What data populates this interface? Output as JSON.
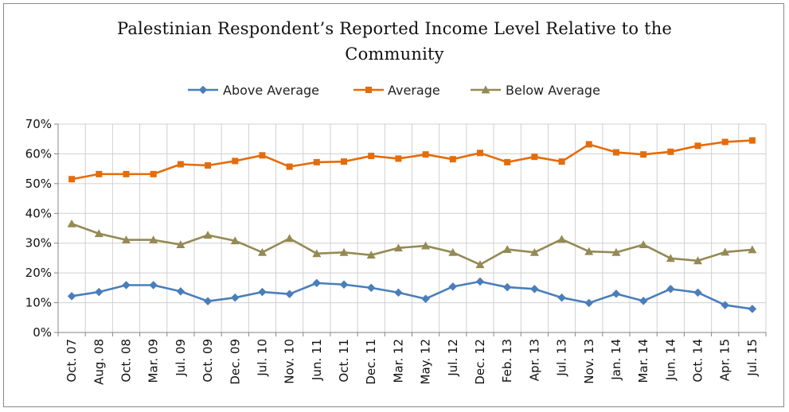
{
  "chart_data": {
    "type": "line",
    "title_lines": [
      "Palestinian Respondent’s Reported Income Level Relative to the",
      "Community"
    ],
    "categories": [
      "Oct. 07",
      "Aug. 08",
      "Oct. 08",
      "Mar. 09",
      "Jul. 09",
      "Oct. 09",
      "Dec. 09",
      "Jul. 10",
      "Nov. 10",
      "Jun. 11",
      "Oct. 11",
      "Dec. 11",
      "Mar. 12",
      "May. 12",
      "Jul. 12",
      "Dec. 12",
      "Feb. 13",
      "Apr. 13",
      "Jul. 13",
      "Nov. 13",
      "Jan. 14",
      "Mar. 14",
      "Jun. 14",
      "Oct. 14",
      "Apr. 15",
      "Jul. 15"
    ],
    "y_ticks": [
      "0%",
      "10%",
      "20%",
      "30%",
      "40%",
      "50%",
      "60%",
      "70%"
    ],
    "ylim": [
      0,
      70
    ],
    "grid": true,
    "legend_position": "top",
    "series": [
      {
        "name": "Above Average",
        "color": "#4a7ebb",
        "marker": "diamond",
        "values": [
          12.2,
          13.6,
          15.9,
          15.9,
          13.8,
          10.5,
          11.7,
          13.6,
          12.9,
          16.6,
          16.1,
          15.0,
          13.4,
          11.3,
          15.4,
          17.1,
          15.2,
          14.6,
          11.7,
          9.9,
          13.0,
          10.6,
          14.6,
          13.4,
          9.2,
          7.9
        ]
      },
      {
        "name": "Average",
        "color": "#e46c0a",
        "marker": "square",
        "values": [
          51.5,
          53.2,
          53.2,
          53.2,
          56.5,
          56.1,
          57.6,
          59.5,
          55.7,
          57.2,
          57.4,
          59.3,
          58.4,
          59.8,
          58.2,
          60.3,
          57.2,
          59.0,
          57.4,
          63.2,
          60.5,
          59.8,
          60.7,
          62.7,
          64.0,
          64.5
        ]
      },
      {
        "name": "Below Average",
        "color": "#948a54",
        "marker": "triangle",
        "values": [
          36.5,
          33.2,
          31.1,
          31.1,
          29.5,
          32.7,
          30.8,
          26.9,
          31.6,
          26.5,
          26.9,
          26.0,
          28.4,
          29.1,
          26.9,
          22.8,
          27.9,
          26.9,
          31.3,
          27.2,
          26.9,
          29.5,
          24.9,
          24.1,
          27.0,
          27.8
        ]
      }
    ]
  }
}
